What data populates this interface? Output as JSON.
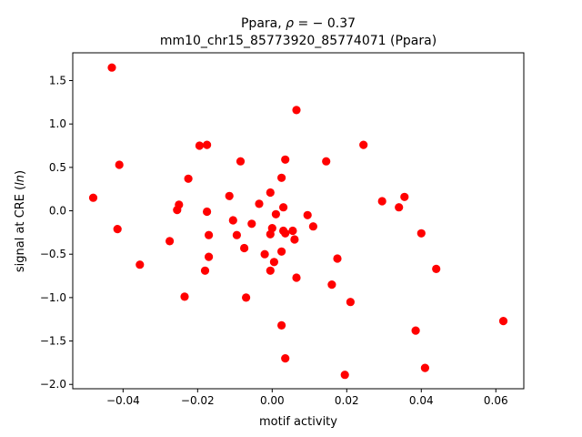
{
  "chart_data": {
    "type": "scatter",
    "title_line1_prefix": "Ppara, ",
    "title_line1_rho": "ρ",
    "title_line1_suffix": " = − 0.37",
    "title_line2": "mm10_chr15_85773920_85774071 (Ppara)",
    "xlabel": "motif activity",
    "ylabel_prefix": "signal at CRE (",
    "ylabel_italic": "ln",
    "ylabel_suffix": ")",
    "xlim": [
      -0.0535,
      0.0675
    ],
    "ylim": [
      -2.05,
      1.82
    ],
    "xticks": [
      -0.04,
      -0.02,
      0.0,
      0.02,
      0.04,
      0.06
    ],
    "xtick_labels": [
      "−0.04",
      "−0.02",
      "0.00",
      "0.02",
      "0.04",
      "0.06"
    ],
    "yticks": [
      -2.0,
      -1.5,
      -1.0,
      -0.5,
      0.0,
      0.5,
      1.0,
      1.5
    ],
    "ytick_labels": [
      "−2.0",
      "−1.5",
      "−1.0",
      "−0.5",
      "0.0",
      "0.5",
      "1.0",
      "1.5"
    ],
    "grid": false,
    "point_color": "#ff0000",
    "points": [
      [
        -0.043,
        1.65
      ],
      [
        -0.048,
        0.15
      ],
      [
        -0.041,
        0.53
      ],
      [
        -0.0415,
        -0.21
      ],
      [
        -0.0355,
        -0.62
      ],
      [
        -0.0275,
        -0.35
      ],
      [
        -0.025,
        0.07
      ],
      [
        -0.0255,
        0.01
      ],
      [
        -0.0235,
        -0.99
      ],
      [
        -0.0225,
        0.37
      ],
      [
        -0.0195,
        0.75
      ],
      [
        -0.0175,
        0.76
      ],
      [
        -0.0175,
        -0.01
      ],
      [
        -0.017,
        -0.28
      ],
      [
        -0.017,
        -0.53
      ],
      [
        -0.018,
        -0.69
      ],
      [
        -0.0115,
        0.17
      ],
      [
        -0.0105,
        -0.11
      ],
      [
        -0.0095,
        -0.28
      ],
      [
        -0.0085,
        0.57
      ],
      [
        -0.0075,
        -0.43
      ],
      [
        -0.007,
        -1.0
      ],
      [
        -0.0055,
        -0.15
      ],
      [
        -0.0035,
        0.08
      ],
      [
        -0.002,
        -0.5
      ],
      [
        -0.0005,
        0.21
      ],
      [
        -0.0005,
        -0.27
      ],
      [
        -0.0005,
        -0.69
      ],
      [
        0.0,
        -0.2
      ],
      [
        0.0005,
        -0.59
      ],
      [
        0.001,
        -0.04
      ],
      [
        0.0025,
        0.38
      ],
      [
        0.003,
        0.04
      ],
      [
        0.003,
        -0.23
      ],
      [
        0.0035,
        -0.26
      ],
      [
        0.0025,
        -0.47
      ],
      [
        0.0035,
        0.59
      ],
      [
        0.0025,
        -1.32
      ],
      [
        0.0035,
        -1.7
      ],
      [
        0.0055,
        -0.23
      ],
      [
        0.006,
        -0.33
      ],
      [
        0.0065,
        1.16
      ],
      [
        0.0065,
        -0.77
      ],
      [
        0.0095,
        -0.05
      ],
      [
        0.011,
        -0.18
      ],
      [
        0.0145,
        0.57
      ],
      [
        0.016,
        -0.85
      ],
      [
        0.0175,
        -0.55
      ],
      [
        0.0195,
        -1.89
      ],
      [
        0.021,
        -1.05
      ],
      [
        0.0245,
        0.76
      ],
      [
        0.0295,
        0.11
      ],
      [
        0.034,
        0.04
      ],
      [
        0.0355,
        0.16
      ],
      [
        0.0385,
        -1.38
      ],
      [
        0.04,
        -0.26
      ],
      [
        0.041,
        -1.81
      ],
      [
        0.044,
        -0.67
      ],
      [
        0.062,
        -1.27
      ]
    ]
  }
}
